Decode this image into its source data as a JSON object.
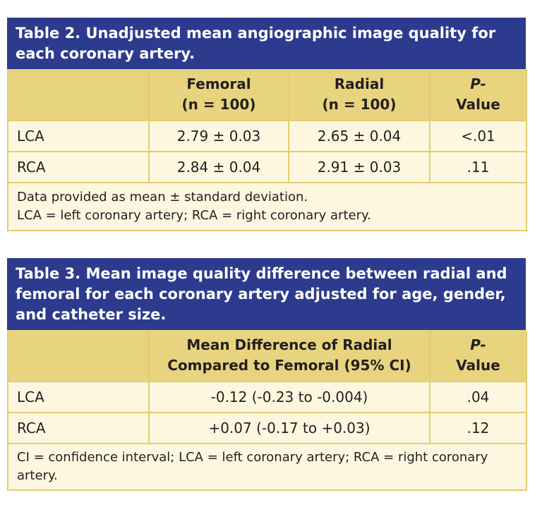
{
  "table2": {
    "title": "Table 2. Unadjusted mean angiographic image quality for each coronary artery.",
    "header": [
      [
        "Femoral",
        "(n = 100)"
      ],
      [
        "Radial",
        "(n = 100)"
      ],
      [
        "P-",
        "Value"
      ]
    ],
    "rows": [
      [
        "LCA",
        "2.79 ± 0.03",
        "2.65 ± 0.04",
        "<.01"
      ],
      [
        "RCA",
        "2.84 ± 0.04",
        "2.91 ± 0.03",
        ".11"
      ]
    ],
    "notes": [
      "Data provided as mean ± standard deviation.",
      "LCA = left coronary artery; RCA = right coronary artery."
    ]
  },
  "table3": {
    "title": "Table 3. Mean image quality difference between radial and femoral for each coronary artery adjusted for age, gender, and catheter size.",
    "header": [
      [
        "Mean Difference of Radial",
        "Compared to Femoral (95% CI)"
      ],
      [
        "P-",
        "Value"
      ]
    ],
    "rows": [
      [
        "LCA",
        "-0.12 (-0.23 to -0.004)",
        ".04"
      ],
      [
        "RCA",
        "+0.07 (-0.17 to +0.03)",
        ".12"
      ]
    ],
    "notes": [
      "CI = confidence interval; LCA = left coronary artery; RCA = right coronary artery."
    ]
  }
}
